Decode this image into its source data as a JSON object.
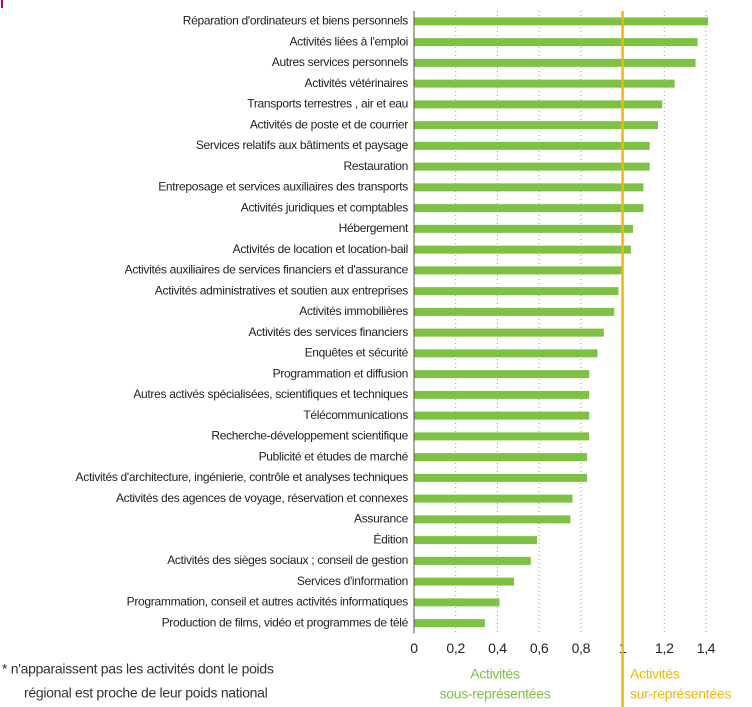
{
  "chart_data": {
    "type": "bar",
    "orientation": "horizontal",
    "categories": [
      "Réparation d'ordinateurs et biens personnels",
      "Activités liées à l'emploi",
      "Autres services personnels",
      "Activités vétérinaires",
      "Transports terrestres , air et eau",
      "Activités de poste et de courrier",
      "Services relatifs aux bâtiments et paysage",
      "Restauration",
      "Entreposage et services auxiliaires des transports",
      "Activités juridiques et comptables",
      "Hébergement",
      "Activités de location et location-bail",
      "Activités auxiliaires de services financiers et d'assurance",
      "Activités administratives et soutien aux entreprises",
      "Activités immobilières",
      "Activités des services financiers",
      "Enquêtes et sécurité",
      "Programmation et diffusion",
      "Autres activés spécialisées, scientifiques et techniques",
      "Télécommunications",
      "Recherche-développement scientifique",
      "Publicité et études de marché",
      "Activités d'architecture, ingénierie, contrôle et analyses techniques",
      "Activités des agences de voyage, réservation et connexes",
      "Assurance",
      "Édition",
      "Activités des sièges sociaux ; conseil de gestion",
      "Services d'information",
      "Programmation, conseil et autres activités informatiques",
      "Production de films, vidéo et programmes de télé"
    ],
    "values": [
      1.41,
      1.36,
      1.35,
      1.25,
      1.19,
      1.17,
      1.13,
      1.13,
      1.1,
      1.1,
      1.05,
      1.04,
      1.0,
      0.98,
      0.96,
      0.91,
      0.88,
      0.84,
      0.84,
      0.84,
      0.84,
      0.83,
      0.83,
      0.76,
      0.75,
      0.59,
      0.56,
      0.48,
      0.41,
      0.34
    ],
    "color": "#7dc242",
    "xlim": [
      0,
      1.4
    ],
    "xticks": [
      0,
      {
        "value": 0.2,
        "label": "0,2"
      },
      {
        "value": 0.4,
        "label": "0,4"
      },
      {
        "value": 0.6,
        "label": "0,6"
      },
      {
        "value": 0.8,
        "label": "0,8"
      },
      1,
      {
        "value": 1.2,
        "label": "1,2"
      },
      {
        "value": 1.4,
        "label": "1,4"
      }
    ],
    "grid": true,
    "reference_line": 1,
    "reference_color": "#f5b800",
    "legend": [
      {
        "lines": [
          "Activités",
          "sous-représentées"
        ],
        "color": "#7dc242"
      },
      {
        "lines": [
          "Activités",
          "sur-représentées"
        ],
        "color": "#f5b800"
      }
    ],
    "note": [
      "* n'apparaissent pas les activités dont le poids",
      "régional est proche de leur poids national"
    ]
  }
}
